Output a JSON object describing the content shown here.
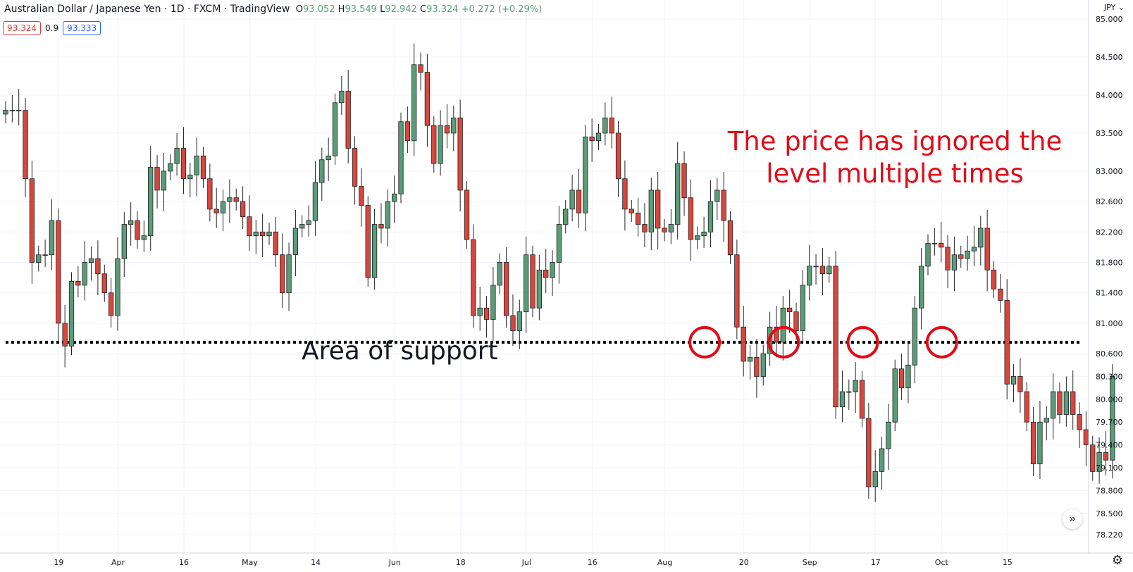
{
  "header": {
    "symbol": "Australian Dollar / Japanese Yen · 1D · FXCM · TradingView",
    "o_label": "O",
    "o": "93.052",
    "h_label": "H",
    "h": "93.549",
    "l_label": "L",
    "l": "92.942",
    "c_label": "C",
    "c": "93.324",
    "change": "+0.272 (+0.29%)"
  },
  "badges": {
    "bid": "93.324",
    "spread": "0.9",
    "ask": "93.333"
  },
  "currency": "JPY",
  "controls": {
    "scroll_icon": "double-chevron-right-icon",
    "settings_icon": "gear-icon"
  },
  "colors": {
    "up": "#5b9c78",
    "down": "#d8463d",
    "annotation": "#e30b17",
    "text": "#131722"
  },
  "chart_data": {
    "type": "candlestick",
    "y_ticks": [
      "85.000",
      "84.500",
      "84.000",
      "83.500",
      "83.000",
      "82.600",
      "82.200",
      "81.800",
      "81.400",
      "81.000",
      "80.600",
      "80.300",
      "80.000",
      "79.700",
      "79.400",
      "79.100",
      "78.800",
      "78.500",
      "78.220"
    ],
    "x_ticks": [
      {
        "label": "19",
        "index": 4
      },
      {
        "label": "Apr",
        "index": 13
      },
      {
        "label": "16",
        "index": 23
      },
      {
        "label": "May",
        "index": 33
      },
      {
        "label": "14",
        "index": 43
      },
      {
        "label": "Jun",
        "index": 55
      },
      {
        "label": "18",
        "index": 65
      },
      {
        "label": "Jul",
        "index": 75
      },
      {
        "label": "16",
        "index": 85
      },
      {
        "label": "Aug",
        "index": 96
      },
      {
        "label": "20",
        "index": 108
      },
      {
        "label": "Sep",
        "index": 118
      },
      {
        "label": "17",
        "index": 128
      },
      {
        "label": "Oct",
        "index": 138
      },
      {
        "label": "15",
        "index": 148
      }
    ],
    "support_level": 80.75,
    "annotations": {
      "support_label": "Area of support",
      "note_line1": "The price has ignored the",
      "note_line2": "level multiple times"
    },
    "circled_candles": [
      106,
      118,
      130,
      142
    ],
    "closes": [
      83.8,
      83.8,
      83.8,
      82.9,
      81.8,
      81.9,
      81.9,
      82.35,
      81.0,
      80.7,
      81.55,
      81.5,
      81.8,
      81.85,
      81.65,
      81.4,
      81.1,
      81.85,
      82.3,
      82.35,
      82.1,
      82.15,
      83.05,
      82.75,
      83.0,
      83.1,
      83.3,
      82.9,
      82.95,
      83.2,
      82.9,
      82.5,
      82.45,
      82.6,
      82.65,
      82.6,
      82.4,
      82.15,
      82.2,
      82.15,
      82.2,
      81.9,
      81.4,
      81.9,
      82.25,
      82.3,
      82.35,
      82.85,
      83.15,
      83.2,
      83.9,
      84.05,
      83.3,
      82.8,
      82.55,
      81.6,
      82.3,
      82.25,
      82.6,
      82.7,
      83.65,
      83.4,
      84.4,
      84.3,
      83.6,
      83.1,
      83.6,
      83.5,
      83.7,
      82.75,
      82.1,
      81.1,
      81.2,
      81.05,
      81.5,
      81.8,
      81.1,
      80.9,
      81.15,
      81.9,
      81.2,
      81.7,
      81.6,
      81.8,
      82.3,
      82.5,
      82.75,
      82.45,
      83.45,
      83.4,
      83.5,
      83.7,
      83.5,
      82.9,
      82.5,
      82.45,
      82.3,
      82.2,
      82.75,
      82.25,
      82.2,
      82.3,
      83.1,
      82.65,
      82.1,
      82.15,
      82.2,
      82.6,
      82.75,
      82.35,
      81.9,
      80.95,
      80.5,
      80.55,
      80.3,
      80.6,
      80.95,
      80.75,
      81.2,
      81.15,
      80.9,
      81.5,
      81.75,
      81.75,
      81.65,
      81.75,
      79.9,
      80.1,
      80.1,
      80.25,
      79.75,
      78.85,
      79.05,
      79.35,
      79.7,
      80.4,
      80.15,
      80.45,
      81.2,
      81.75,
      82.05,
      82.05,
      82.0,
      81.7,
      81.9,
      81.85,
      81.95,
      82.0,
      82.25,
      81.7,
      81.45,
      81.3,
      80.2,
      80.3,
      80.1,
      79.7,
      79.15,
      79.7,
      79.75,
      80.1,
      79.8,
      80.1,
      79.8,
      79.6,
      79.4,
      79.05,
      79.3,
      79.2,
      80.3
    ]
  }
}
